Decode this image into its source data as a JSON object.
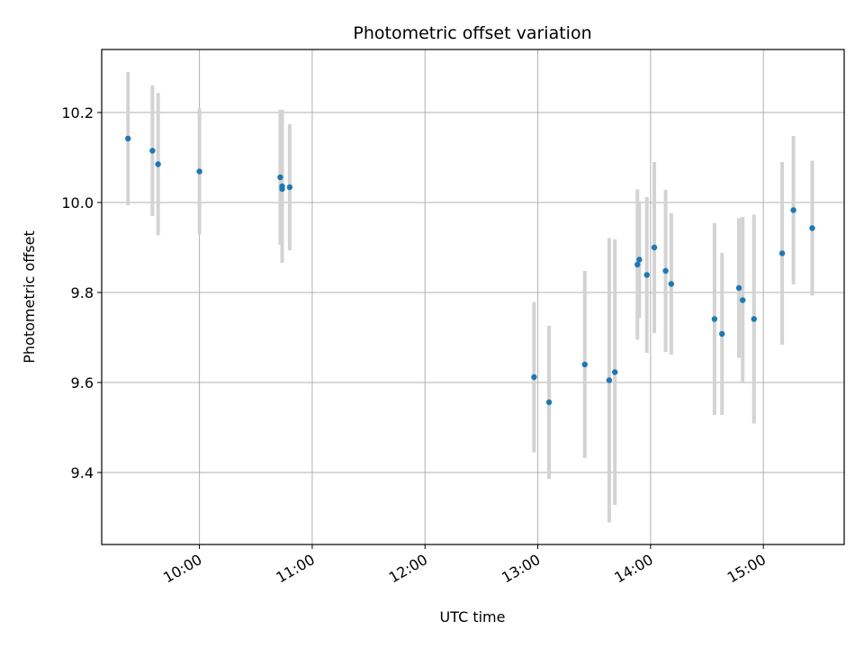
{
  "chart_data": {
    "type": "scatter",
    "title": "Photometric offset variation",
    "xlabel": "UTC time",
    "ylabel": "Photometric offset",
    "x_ticks": [
      "10:00",
      "11:00",
      "12:00",
      "13:00",
      "14:00",
      "15:00"
    ],
    "y_ticks": [
      "9.4",
      "9.6",
      "9.8",
      "10.0",
      "10.2"
    ],
    "xlim": [
      "09:08",
      "15:43"
    ],
    "ylim": [
      9.24,
      10.34
    ],
    "grid": true,
    "colors": {
      "point": "#1f77b4",
      "errorbar": "#d3d3d3"
    },
    "series": [
      {
        "points": [
          {
            "x": "09:22",
            "y": 10.142,
            "err": 0.148
          },
          {
            "x": "09:35",
            "y": 10.115,
            "err": 0.145
          },
          {
            "x": "09:38",
            "y": 10.085,
            "err": 0.158
          },
          {
            "x": "10:00",
            "y": 10.069,
            "err": 0.14
          },
          {
            "x": "10:43",
            "y": 10.056,
            "err": 0.15
          },
          {
            "x": "10:44",
            "y": 10.036,
            "err": 0.17
          },
          {
            "x": "10:44",
            "y": 10.03,
            "err": 0.15
          },
          {
            "x": "10:48",
            "y": 10.034,
            "err": 0.14
          },
          {
            "x": "12:58",
            "y": 9.612,
            "err": 0.167
          },
          {
            "x": "13:06",
            "y": 9.556,
            "err": 0.17
          },
          {
            "x": "13:25",
            "y": 9.64,
            "err": 0.208
          },
          {
            "x": "13:38",
            "y": 9.605,
            "err": 0.316
          },
          {
            "x": "13:41",
            "y": 9.623,
            "err": 0.295
          },
          {
            "x": "13:53",
            "y": 9.862,
            "err": 0.167
          },
          {
            "x": "13:54",
            "y": 9.873,
            "err": 0.13
          },
          {
            "x": "13:58",
            "y": 9.839,
            "err": 0.173
          },
          {
            "x": "14:02",
            "y": 9.9,
            "err": 0.19
          },
          {
            "x": "14:08",
            "y": 9.848,
            "err": 0.18
          },
          {
            "x": "14:11",
            "y": 9.819,
            "err": 0.157
          },
          {
            "x": "14:34",
            "y": 9.741,
            "err": 0.213
          },
          {
            "x": "14:38",
            "y": 9.708,
            "err": 0.18
          },
          {
            "x": "14:47",
            "y": 9.81,
            "err": 0.155
          },
          {
            "x": "14:49",
            "y": 9.783,
            "err": 0.185
          },
          {
            "x": "14:55",
            "y": 9.741,
            "err": 0.232
          },
          {
            "x": "15:10",
            "y": 9.887,
            "err": 0.203
          },
          {
            "x": "15:16",
            "y": 9.983,
            "err": 0.165
          },
          {
            "x": "15:26",
            "y": 9.943,
            "err": 0.15
          }
        ]
      }
    ]
  }
}
